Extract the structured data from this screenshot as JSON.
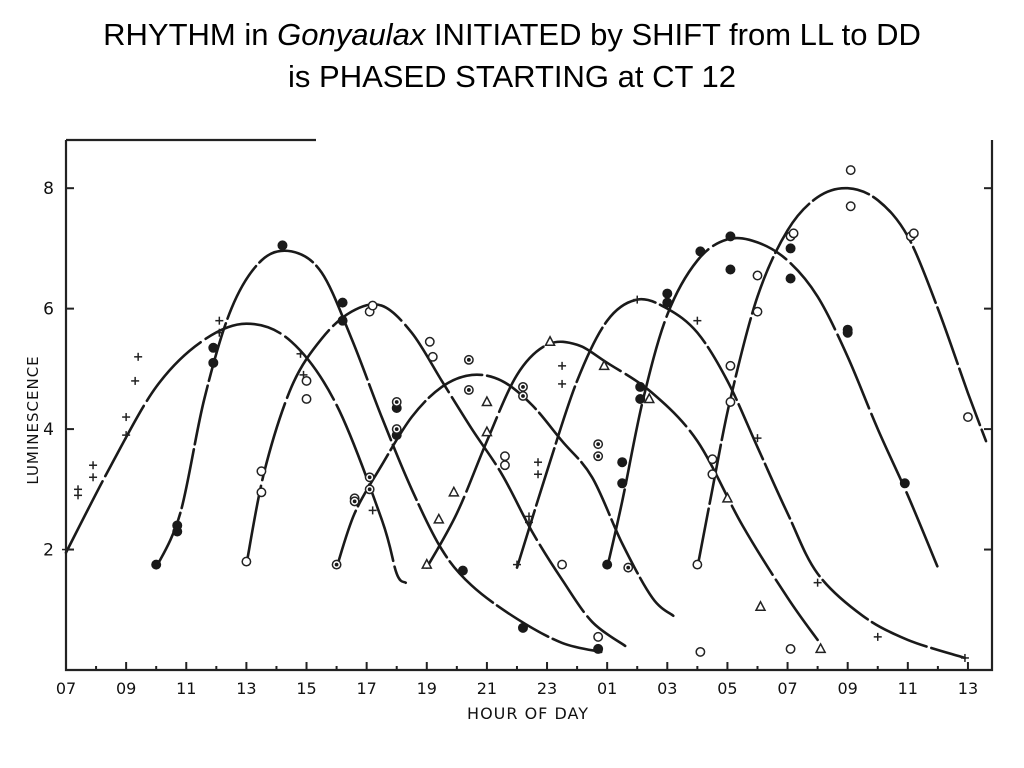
{
  "title": {
    "line1_prefix": "RHYTHM in ",
    "line1_italic": "Gonyaulax",
    "line1_suffix": " INITIATED by SHIFT from LL to DD",
    "line2": "is PHASED STARTING at CT 12"
  },
  "chart_data": {
    "type": "scatter",
    "xlabel": "HOUR OF DAY",
    "ylabel": "LUMINESCENCE",
    "x_ticks": [
      "07",
      "09",
      "11",
      "13",
      "15",
      "17",
      "19",
      "21",
      "23",
      "01",
      "03",
      "05",
      "07",
      "09",
      "11",
      "13"
    ],
    "x_range_hours_elapsed_from_07": [
      0,
      30.8
    ],
    "ylim": [
      0,
      8.8
    ],
    "y_ticks": [
      "2",
      "4",
      "6",
      "8"
    ],
    "grid": false,
    "series": [
      {
        "marker": "plus",
        "points": [
          [
            0.0,
            2.0
          ],
          [
            0.4,
            2.9
          ],
          [
            0.4,
            3.0
          ],
          [
            0.9,
            3.2
          ],
          [
            0.9,
            3.4
          ],
          [
            2.0,
            3.9
          ],
          [
            2.0,
            4.2
          ],
          [
            2.3,
            4.8
          ],
          [
            2.4,
            5.2
          ],
          [
            5.1,
            5.6
          ],
          [
            5.1,
            5.8
          ],
          [
            7.8,
            5.25
          ],
          [
            7.9,
            4.9
          ],
          [
            10.2,
            2.65
          ]
        ],
        "curve": [
          [
            0.0,
            1.95
          ],
          [
            1.5,
            3.4
          ],
          [
            3.0,
            4.7
          ],
          [
            4.5,
            5.45
          ],
          [
            6.0,
            5.75
          ],
          [
            7.5,
            5.45
          ],
          [
            9.0,
            4.4
          ],
          [
            10.5,
            2.5
          ],
          [
            11.0,
            1.6
          ],
          [
            11.3,
            1.45
          ]
        ]
      },
      {
        "marker": "filled",
        "points": [
          [
            3.0,
            1.75
          ],
          [
            3.7,
            2.3
          ],
          [
            3.7,
            2.4
          ],
          [
            4.9,
            5.35
          ],
          [
            4.9,
            5.1
          ],
          [
            7.2,
            7.05
          ],
          [
            9.2,
            6.1
          ],
          [
            9.2,
            5.8
          ],
          [
            11.0,
            4.35
          ],
          [
            11.0,
            3.9
          ],
          [
            13.2,
            1.65
          ],
          [
            15.2,
            0.7
          ],
          [
            17.7,
            0.35
          ]
        ],
        "curve": [
          [
            3.0,
            1.7
          ],
          [
            3.8,
            2.6
          ],
          [
            4.6,
            4.5
          ],
          [
            5.5,
            6.0
          ],
          [
            6.5,
            6.8
          ],
          [
            7.5,
            6.95
          ],
          [
            8.5,
            6.6
          ],
          [
            9.5,
            5.5
          ],
          [
            10.5,
            4.2
          ],
          [
            11.5,
            3.0
          ],
          [
            12.5,
            2.0
          ],
          [
            13.5,
            1.4
          ],
          [
            15.0,
            0.85
          ],
          [
            16.5,
            0.45
          ],
          [
            17.8,
            0.3
          ]
        ]
      },
      {
        "marker": "open",
        "points": [
          [
            6.0,
            1.8
          ],
          [
            6.5,
            2.95
          ],
          [
            6.5,
            3.3
          ],
          [
            8.0,
            4.8
          ],
          [
            8.0,
            4.5
          ],
          [
            10.1,
            5.95
          ],
          [
            10.2,
            6.05
          ],
          [
            12.1,
            5.45
          ],
          [
            12.2,
            5.2
          ],
          [
            14.6,
            3.55
          ],
          [
            14.6,
            3.4
          ],
          [
            16.5,
            1.75
          ],
          [
            17.7,
            0.55
          ]
        ],
        "curve": [
          [
            6.0,
            1.75
          ],
          [
            6.6,
            3.3
          ],
          [
            7.5,
            4.7
          ],
          [
            8.5,
            5.5
          ],
          [
            9.5,
            5.95
          ],
          [
            10.5,
            6.05
          ],
          [
            11.5,
            5.6
          ],
          [
            12.5,
            4.8
          ],
          [
            13.5,
            4.0
          ],
          [
            14.5,
            3.25
          ],
          [
            15.5,
            2.3
          ],
          [
            16.5,
            1.5
          ],
          [
            17.5,
            0.8
          ],
          [
            18.6,
            0.4
          ]
        ]
      },
      {
        "marker": "dotted",
        "points": [
          [
            9.0,
            1.75
          ],
          [
            9.6,
            2.85
          ],
          [
            9.6,
            2.8
          ],
          [
            10.1,
            3.0
          ],
          [
            10.1,
            3.2
          ],
          [
            11.0,
            4.0
          ],
          [
            11.0,
            4.45
          ],
          [
            13.4,
            4.65
          ],
          [
            13.4,
            5.15
          ],
          [
            15.2,
            4.7
          ],
          [
            15.2,
            4.55
          ],
          [
            17.7,
            3.75
          ],
          [
            17.7,
            3.55
          ],
          [
            18.7,
            1.7
          ]
        ],
        "curve": [
          [
            9.0,
            1.7
          ],
          [
            9.6,
            2.6
          ],
          [
            10.5,
            3.4
          ],
          [
            11.5,
            4.2
          ],
          [
            12.5,
            4.7
          ],
          [
            13.5,
            4.9
          ],
          [
            14.5,
            4.8
          ],
          [
            15.5,
            4.4
          ],
          [
            16.5,
            3.8
          ],
          [
            17.5,
            3.2
          ],
          [
            18.5,
            2.1
          ],
          [
            19.5,
            1.2
          ],
          [
            20.2,
            0.9
          ]
        ]
      },
      {
        "marker": "triangle",
        "points": [
          [
            12.0,
            1.75
          ],
          [
            12.4,
            2.5
          ],
          [
            12.9,
            2.95
          ],
          [
            14.0,
            3.95
          ],
          [
            14.0,
            4.45
          ],
          [
            16.1,
            5.45
          ],
          [
            17.9,
            5.05
          ],
          [
            19.4,
            4.5
          ],
          [
            22.0,
            2.85
          ],
          [
            23.1,
            1.05
          ],
          [
            25.1,
            0.35
          ]
        ],
        "curve": [
          [
            12.0,
            1.7
          ],
          [
            13.0,
            2.6
          ],
          [
            14.0,
            3.8
          ],
          [
            15.0,
            4.9
          ],
          [
            16.0,
            5.4
          ],
          [
            17.0,
            5.4
          ],
          [
            18.0,
            5.1
          ],
          [
            19.5,
            4.6
          ],
          [
            21.0,
            3.8
          ],
          [
            22.5,
            2.4
          ],
          [
            24.0,
            1.2
          ],
          [
            25.0,
            0.5
          ]
        ]
      },
      {
        "marker": "plus",
        "points": [
          [
            15.0,
            1.75
          ],
          [
            15.4,
            2.45
          ],
          [
            15.4,
            2.55
          ],
          [
            15.7,
            3.25
          ],
          [
            15.7,
            3.45
          ],
          [
            16.5,
            4.75
          ],
          [
            16.5,
            5.05
          ],
          [
            19.0,
            6.15
          ],
          [
            21.0,
            5.8
          ],
          [
            23.0,
            3.85
          ],
          [
            25.0,
            1.45
          ],
          [
            27.0,
            0.55
          ],
          [
            29.9,
            0.2
          ]
        ],
        "curve": [
          [
            15.0,
            1.7
          ],
          [
            16.0,
            3.3
          ],
          [
            17.0,
            4.8
          ],
          [
            18.0,
            5.8
          ],
          [
            19.0,
            6.15
          ],
          [
            20.0,
            6.0
          ],
          [
            21.0,
            5.6
          ],
          [
            22.0,
            4.8
          ],
          [
            23.0,
            3.7
          ],
          [
            24.0,
            2.6
          ],
          [
            25.0,
            1.6
          ],
          [
            26.5,
            0.9
          ],
          [
            28.0,
            0.5
          ],
          [
            29.9,
            0.2
          ]
        ]
      },
      {
        "marker": "filled",
        "points": [
          [
            18.0,
            1.75
          ],
          [
            18.5,
            3.45
          ],
          [
            18.5,
            3.1
          ],
          [
            19.1,
            4.5
          ],
          [
            19.1,
            4.7
          ],
          [
            20.0,
            6.1
          ],
          [
            20.0,
            6.25
          ],
          [
            21.1,
            6.95
          ],
          [
            22.1,
            7.2
          ],
          [
            22.1,
            6.65
          ],
          [
            24.1,
            7.0
          ],
          [
            24.1,
            6.5
          ],
          [
            26.0,
            5.65
          ],
          [
            26.0,
            5.6
          ],
          [
            27.9,
            3.1
          ]
        ],
        "curve": [
          [
            18.0,
            1.7
          ],
          [
            18.5,
            2.8
          ],
          [
            19.2,
            4.5
          ],
          [
            20.0,
            5.9
          ],
          [
            21.0,
            6.8
          ],
          [
            22.0,
            7.15
          ],
          [
            23.0,
            7.1
          ],
          [
            24.0,
            6.8
          ],
          [
            25.0,
            6.2
          ],
          [
            26.0,
            5.2
          ],
          [
            27.0,
            4.0
          ],
          [
            28.0,
            2.9
          ],
          [
            29.0,
            1.7
          ]
        ]
      },
      {
        "marker": "open",
        "points": [
          [
            21.0,
            1.75
          ],
          [
            21.5,
            3.25
          ],
          [
            21.5,
            3.5
          ],
          [
            22.1,
            4.45
          ],
          [
            22.1,
            5.05
          ],
          [
            23.0,
            5.95
          ],
          [
            23.0,
            6.55
          ],
          [
            24.1,
            7.2
          ],
          [
            24.2,
            7.25
          ],
          [
            26.1,
            8.3
          ],
          [
            26.1,
            7.7
          ],
          [
            28.1,
            7.2
          ],
          [
            28.2,
            7.25
          ],
          [
            30.0,
            4.2
          ],
          [
            21.1,
            0.3
          ],
          [
            24.1,
            0.35
          ]
        ],
        "curve": [
          [
            21.0,
            1.7
          ],
          [
            21.5,
            3.0
          ],
          [
            22.1,
            4.5
          ],
          [
            23.0,
            6.2
          ],
          [
            24.0,
            7.3
          ],
          [
            25.0,
            7.85
          ],
          [
            26.0,
            8.0
          ],
          [
            27.0,
            7.8
          ],
          [
            28.0,
            7.2
          ],
          [
            29.0,
            6.0
          ],
          [
            30.0,
            4.6
          ],
          [
            30.6,
            3.8
          ]
        ]
      }
    ]
  }
}
